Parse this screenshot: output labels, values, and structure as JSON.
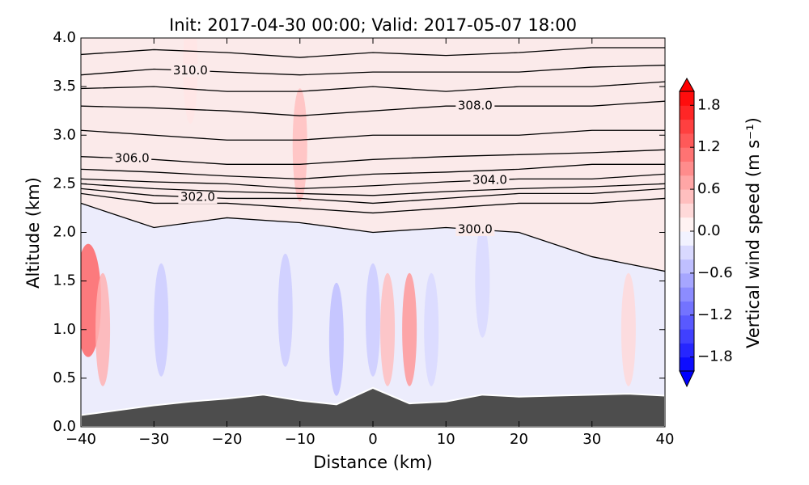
{
  "chart_data": {
    "type": "contour",
    "title": "Init: 2017-04-30 00:00; Valid: 2017-05-07 18:00",
    "x_label": "Distance (km)",
    "y_label": "Altitude (km)",
    "xlim": [
      -40,
      40
    ],
    "xticks": [
      {
        "value": -40,
        "label": "−40"
      },
      {
        "value": -30,
        "label": "−30"
      },
      {
        "value": -20,
        "label": "−20"
      },
      {
        "value": -10,
        "label": "−10"
      },
      0,
      10,
      20,
      30,
      40
    ],
    "ylim": [
      0,
      4
    ],
    "yticks": [
      {
        "value": 0,
        "label": "0.0"
      },
      0.5,
      {
        "value": 1,
        "label": "1.0"
      },
      1.5,
      {
        "value": 2,
        "label": "2.0"
      },
      2.5,
      {
        "value": 3,
        "label": "3.0"
      },
      3.5,
      {
        "value": 4,
        "label": "4.0"
      }
    ],
    "colorbar_label": "Vertical wind speed (m s⁻¹)",
    "clim": [
      -2,
      2
    ],
    "cticks": [
      {
        "value": -1.8,
        "label": "−1.8"
      },
      {
        "value": -1.2,
        "label": "−1.2"
      },
      {
        "value": -0.6,
        "label": "−0.6"
      },
      {
        "value": 0,
        "label": "0.0"
      },
      0.6,
      1.2,
      1.8
    ],
    "contour_color": "#000000",
    "contour_x": [
      -40,
      -30,
      -20,
      -10,
      0,
      10,
      20,
      30,
      40
    ],
    "contours": [
      {
        "level": {
          "value": 300,
          "label": "300.0"
        },
        "altitude": [
          2.3,
          2.05,
          2.15,
          2.1,
          2.0,
          2.05,
          2.0,
          1.75,
          1.6
        ]
      },
      {
        "level": 301,
        "altitude": [
          2.4,
          2.3,
          2.3,
          2.25,
          2.2,
          2.25,
          2.3,
          2.3,
          2.35
        ]
      },
      {
        "level": {
          "value": 302,
          "label": "302.0"
        },
        "altitude": [
          2.45,
          2.38,
          2.35,
          2.35,
          2.3,
          2.35,
          2.4,
          2.4,
          2.45
        ]
      },
      {
        "level": 303,
        "altitude": [
          2.5,
          2.45,
          2.42,
          2.4,
          2.38,
          2.42,
          2.45,
          2.47,
          2.5
        ]
      },
      {
        "level": {
          "value": 304,
          "label": "304.0"
        },
        "altitude": [
          2.55,
          2.52,
          2.5,
          2.45,
          2.48,
          2.52,
          2.55,
          2.55,
          2.6
        ]
      },
      {
        "level": 305,
        "altitude": [
          2.65,
          2.62,
          2.58,
          2.55,
          2.6,
          2.62,
          2.65,
          2.7,
          2.7
        ]
      },
      {
        "level": {
          "value": 306,
          "label": "306.0"
        },
        "altitude": [
          2.78,
          2.75,
          2.7,
          2.7,
          2.75,
          2.78,
          2.8,
          2.82,
          2.85
        ]
      },
      {
        "level": 307,
        "altitude": [
          3.05,
          3.0,
          2.95,
          2.95,
          3.0,
          3.0,
          3.0,
          3.05,
          3.05
        ]
      },
      {
        "level": {
          "value": 308,
          "label": "308.0"
        },
        "altitude": [
          3.3,
          3.28,
          3.25,
          3.2,
          3.25,
          3.3,
          3.3,
          3.3,
          3.35
        ]
      },
      {
        "level": 309,
        "altitude": [
          3.48,
          3.5,
          3.45,
          3.45,
          3.5,
          3.45,
          3.5,
          3.5,
          3.55
        ]
      },
      {
        "level": {
          "value": 310,
          "label": "310.0"
        },
        "altitude": [
          3.62,
          3.68,
          3.65,
          3.62,
          3.65,
          3.65,
          3.65,
          3.7,
          3.72
        ]
      },
      {
        "level": 311,
        "altitude": [
          3.83,
          3.88,
          3.85,
          3.8,
          3.85,
          3.82,
          3.85,
          3.9,
          3.9
        ]
      }
    ],
    "wind_features": [
      {
        "x": -39,
        "altitude": 1.3,
        "value": 1.2
      },
      {
        "x": -37,
        "altitude": 1.0,
        "value": 0.6
      },
      {
        "x": -29,
        "altitude": 1.1,
        "value": -0.4
      },
      {
        "x": -12,
        "altitude": 1.2,
        "value": -0.4
      },
      {
        "x": -5,
        "altitude": 0.9,
        "value": -0.5
      },
      {
        "x": 0,
        "altitude": 1.1,
        "value": -0.4
      },
      {
        "x": 2,
        "altitude": 1.0,
        "value": 0.5
      },
      {
        "x": 5,
        "altitude": 1.0,
        "value": 0.8
      },
      {
        "x": 8,
        "altitude": 1.0,
        "value": -0.3
      },
      {
        "x": 15,
        "altitude": 1.5,
        "value": -0.3
      },
      {
        "x": 35,
        "altitude": 1.0,
        "value": 0.3
      },
      {
        "x": -10,
        "altitude": 2.9,
        "value": 0.5
      },
      {
        "x": -25,
        "altitude": 3.7,
        "value": 0.2
      }
    ],
    "terrain_color": "#4d4d4d",
    "terrain": {
      "x": [
        -40,
        -35,
        -30,
        -25,
        -20,
        -15,
        -10,
        -5,
        0,
        5,
        10,
        15,
        20,
        25,
        30,
        35,
        40
      ],
      "altitude": [
        0.12,
        0.17,
        0.22,
        0.26,
        0.29,
        0.33,
        0.27,
        0.23,
        0.4,
        0.24,
        0.26,
        0.33,
        0.31,
        0.32,
        0.33,
        0.34,
        0.32
      ]
    }
  }
}
